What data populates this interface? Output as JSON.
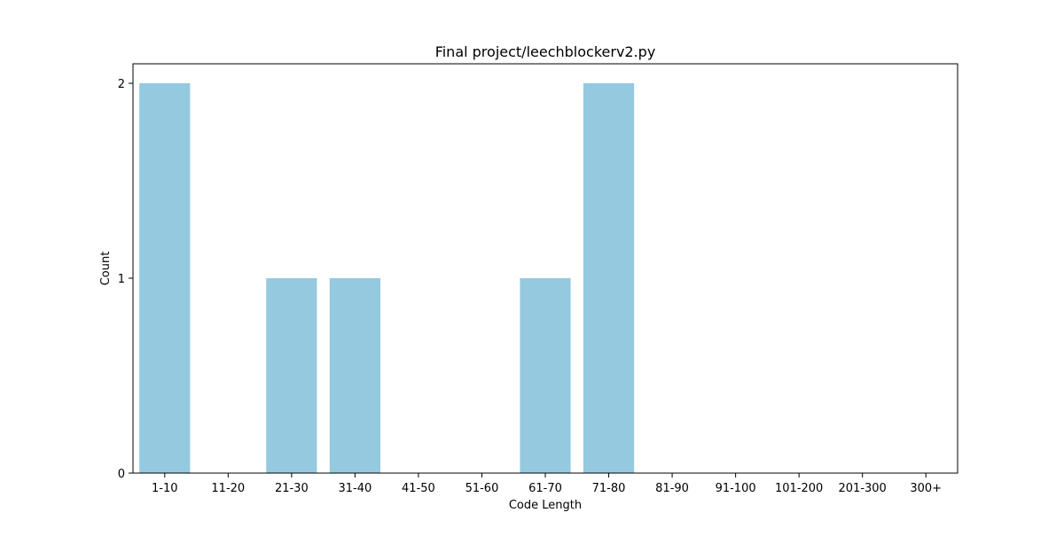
{
  "chart_data": {
    "type": "bar",
    "title": "Final project/leechblockerv2.py",
    "xlabel": "Code Length",
    "ylabel": "Count",
    "categories": [
      "1-10",
      "11-20",
      "21-30",
      "31-40",
      "41-50",
      "51-60",
      "61-70",
      "71-80",
      "81-90",
      "91-100",
      "101-200",
      "201-300",
      "300+"
    ],
    "values": [
      2,
      0,
      1,
      1,
      0,
      0,
      1,
      2,
      0,
      0,
      0,
      0,
      0
    ],
    "yticks": [
      0,
      1,
      2
    ],
    "ylim": [
      0,
      2.1
    ],
    "grid": false,
    "legend": "none",
    "bar_color": "#95c9df"
  }
}
